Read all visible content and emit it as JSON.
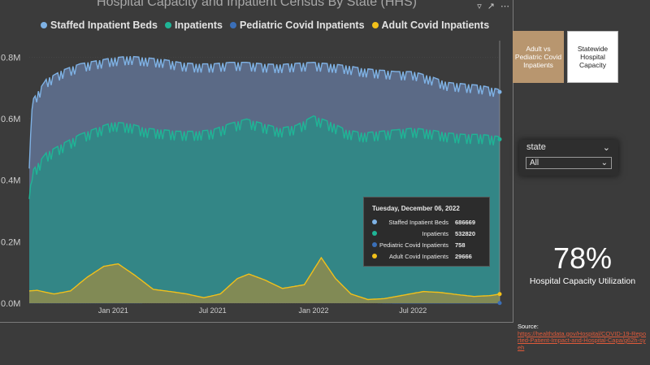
{
  "visual": {
    "title": "Hospital Capacity and Inpatient Census By State (HHS)",
    "icons": {
      "filter": "filter-icon",
      "focus": "focus-mode-icon",
      "more": "more-options-icon"
    }
  },
  "chart_data": {
    "type": "area",
    "title": "Hospital Capacity and Inpatient Census By State (HHS)",
    "x_range": [
      "2020-08-01",
      "2022-12-06"
    ],
    "x_tick_labels": [
      "Jan 2021",
      "Jul 2021",
      "Jan 2022",
      "Jul 2022"
    ],
    "y_tick_labels": [
      "0.0M",
      "0.2M",
      "0.4M",
      "0.6M",
      "0.8M"
    ],
    "ylim": [
      0,
      880000
    ],
    "series": [
      {
        "name": "Staffed Inpatient Beds",
        "color": "#7fb2e5",
        "fill": "#5b6a86",
        "points": [
          [
            "2020-08-01",
            430000
          ],
          [
            "2020-08-06",
            650000
          ],
          [
            "2020-09-01",
            720000
          ],
          [
            "2020-10-01",
            750000
          ],
          [
            "2020-11-01",
            770000
          ],
          [
            "2020-12-01",
            780000
          ],
          [
            "2021-01-01",
            790000
          ],
          [
            "2021-02-01",
            795000
          ],
          [
            "2021-03-01",
            790000
          ],
          [
            "2021-04-01",
            785000
          ],
          [
            "2021-05-01",
            775000
          ],
          [
            "2021-06-01",
            770000
          ],
          [
            "2021-07-01",
            770000
          ],
          [
            "2021-08-01",
            775000
          ],
          [
            "2021-09-01",
            775000
          ],
          [
            "2021-10-01",
            770000
          ],
          [
            "2021-11-01",
            768000
          ],
          [
            "2021-12-01",
            772000
          ],
          [
            "2022-01-01",
            775000
          ],
          [
            "2022-02-01",
            770000
          ],
          [
            "2022-03-01",
            765000
          ],
          [
            "2022-04-01",
            755000
          ],
          [
            "2022-05-01",
            750000
          ],
          [
            "2022-06-01",
            745000
          ],
          [
            "2022-07-01",
            745000
          ],
          [
            "2022-08-01",
            730000
          ],
          [
            "2022-09-01",
            710000
          ],
          [
            "2022-10-01",
            705000
          ],
          [
            "2022-11-01",
            700000
          ],
          [
            "2022-12-06",
            686669
          ]
        ]
      },
      {
        "name": "Inpatients",
        "color": "#1fb596",
        "fill": "#2f8a86",
        "points": [
          [
            "2020-08-01",
            330000
          ],
          [
            "2020-08-06",
            420000
          ],
          [
            "2020-09-01",
            480000
          ],
          [
            "2020-10-01",
            510000
          ],
          [
            "2020-11-01",
            540000
          ],
          [
            "2020-12-01",
            560000
          ],
          [
            "2021-01-01",
            580000
          ],
          [
            "2021-02-01",
            575000
          ],
          [
            "2021-03-01",
            560000
          ],
          [
            "2021-04-01",
            555000
          ],
          [
            "2021-05-01",
            550000
          ],
          [
            "2021-06-01",
            550000
          ],
          [
            "2021-07-01",
            555000
          ],
          [
            "2021-08-01",
            575000
          ],
          [
            "2021-09-01",
            590000
          ],
          [
            "2021-10-01",
            575000
          ],
          [
            "2021-11-01",
            560000
          ],
          [
            "2021-12-01",
            570000
          ],
          [
            "2022-01-01",
            600000
          ],
          [
            "2022-02-01",
            580000
          ],
          [
            "2022-03-01",
            555000
          ],
          [
            "2022-04-01",
            545000
          ],
          [
            "2022-05-01",
            550000
          ],
          [
            "2022-06-01",
            555000
          ],
          [
            "2022-07-01",
            560000
          ],
          [
            "2022-08-01",
            555000
          ],
          [
            "2022-09-01",
            545000
          ],
          [
            "2022-10-01",
            540000
          ],
          [
            "2022-11-01",
            540000
          ],
          [
            "2022-12-06",
            532820
          ]
        ]
      },
      {
        "name": "Pediatric Covid Inpatients",
        "color": "#3a6fb8",
        "fill": "#3a6fb8",
        "points": [
          [
            "2020-08-01",
            1500
          ],
          [
            "2021-01-01",
            1500
          ],
          [
            "2021-09-01",
            2500
          ],
          [
            "2022-01-20",
            4500
          ],
          [
            "2022-06-01",
            700
          ],
          [
            "2022-12-06",
            758
          ]
        ]
      },
      {
        "name": "Adult Covid Inpatients",
        "color": "#f2c01a",
        "fill": "#8a8b50",
        "points": [
          [
            "2020-08-01",
            40000
          ],
          [
            "2020-08-15",
            42000
          ],
          [
            "2020-09-15",
            30000
          ],
          [
            "2020-10-15",
            40000
          ],
          [
            "2020-11-15",
            85000
          ],
          [
            "2020-12-15",
            120000
          ],
          [
            "2021-01-10",
            128000
          ],
          [
            "2021-02-10",
            90000
          ],
          [
            "2021-03-15",
            45000
          ],
          [
            "2021-04-15",
            38000
          ],
          [
            "2021-05-15",
            30000
          ],
          [
            "2021-06-15",
            18000
          ],
          [
            "2021-07-15",
            30000
          ],
          [
            "2021-08-15",
            80000
          ],
          [
            "2021-09-05",
            95000
          ],
          [
            "2021-10-05",
            75000
          ],
          [
            "2021-11-05",
            48000
          ],
          [
            "2021-12-15",
            60000
          ],
          [
            "2022-01-15",
            148000
          ],
          [
            "2022-02-10",
            80000
          ],
          [
            "2022-03-10",
            30000
          ],
          [
            "2022-04-10",
            12000
          ],
          [
            "2022-05-10",
            15000
          ],
          [
            "2022-06-10",
            25000
          ],
          [
            "2022-07-20",
            38000
          ],
          [
            "2022-08-20",
            35000
          ],
          [
            "2022-09-20",
            28000
          ],
          [
            "2022-10-20",
            22000
          ],
          [
            "2022-11-20",
            25000
          ],
          [
            "2022-12-06",
            29666
          ]
        ]
      }
    ],
    "tooltip": {
      "date": "Tuesday, December 06, 2022",
      "rows": [
        {
          "label": "Staffed Inpatient Beds",
          "value": "686669",
          "color": "#7fb2e5"
        },
        {
          "label": "Inpatients",
          "value": "532820",
          "color": "#1fb596"
        },
        {
          "label": "Pediatric Covid Inpatients",
          "value": "758",
          "color": "#3a6fb8"
        },
        {
          "label": "Adult Covid Inpatients",
          "value": "29666",
          "color": "#f2c01a"
        }
      ]
    }
  },
  "buttons": {
    "adult_vs_pediatric": "Adult vs Pediatric Covid Inpatients",
    "statewide_capacity": "Statewide Hospital Capacity"
  },
  "slicer": {
    "title": "state",
    "selected": "All"
  },
  "kpi": {
    "value": "78%",
    "label": "Hospital Capacity Utilization"
  },
  "source": {
    "label": "Source:",
    "link": "https://healthdata.gov/Hospital/COVID-19-Reported-Patient-Impact-and-Hospital-Capa/g62h-syeh"
  }
}
